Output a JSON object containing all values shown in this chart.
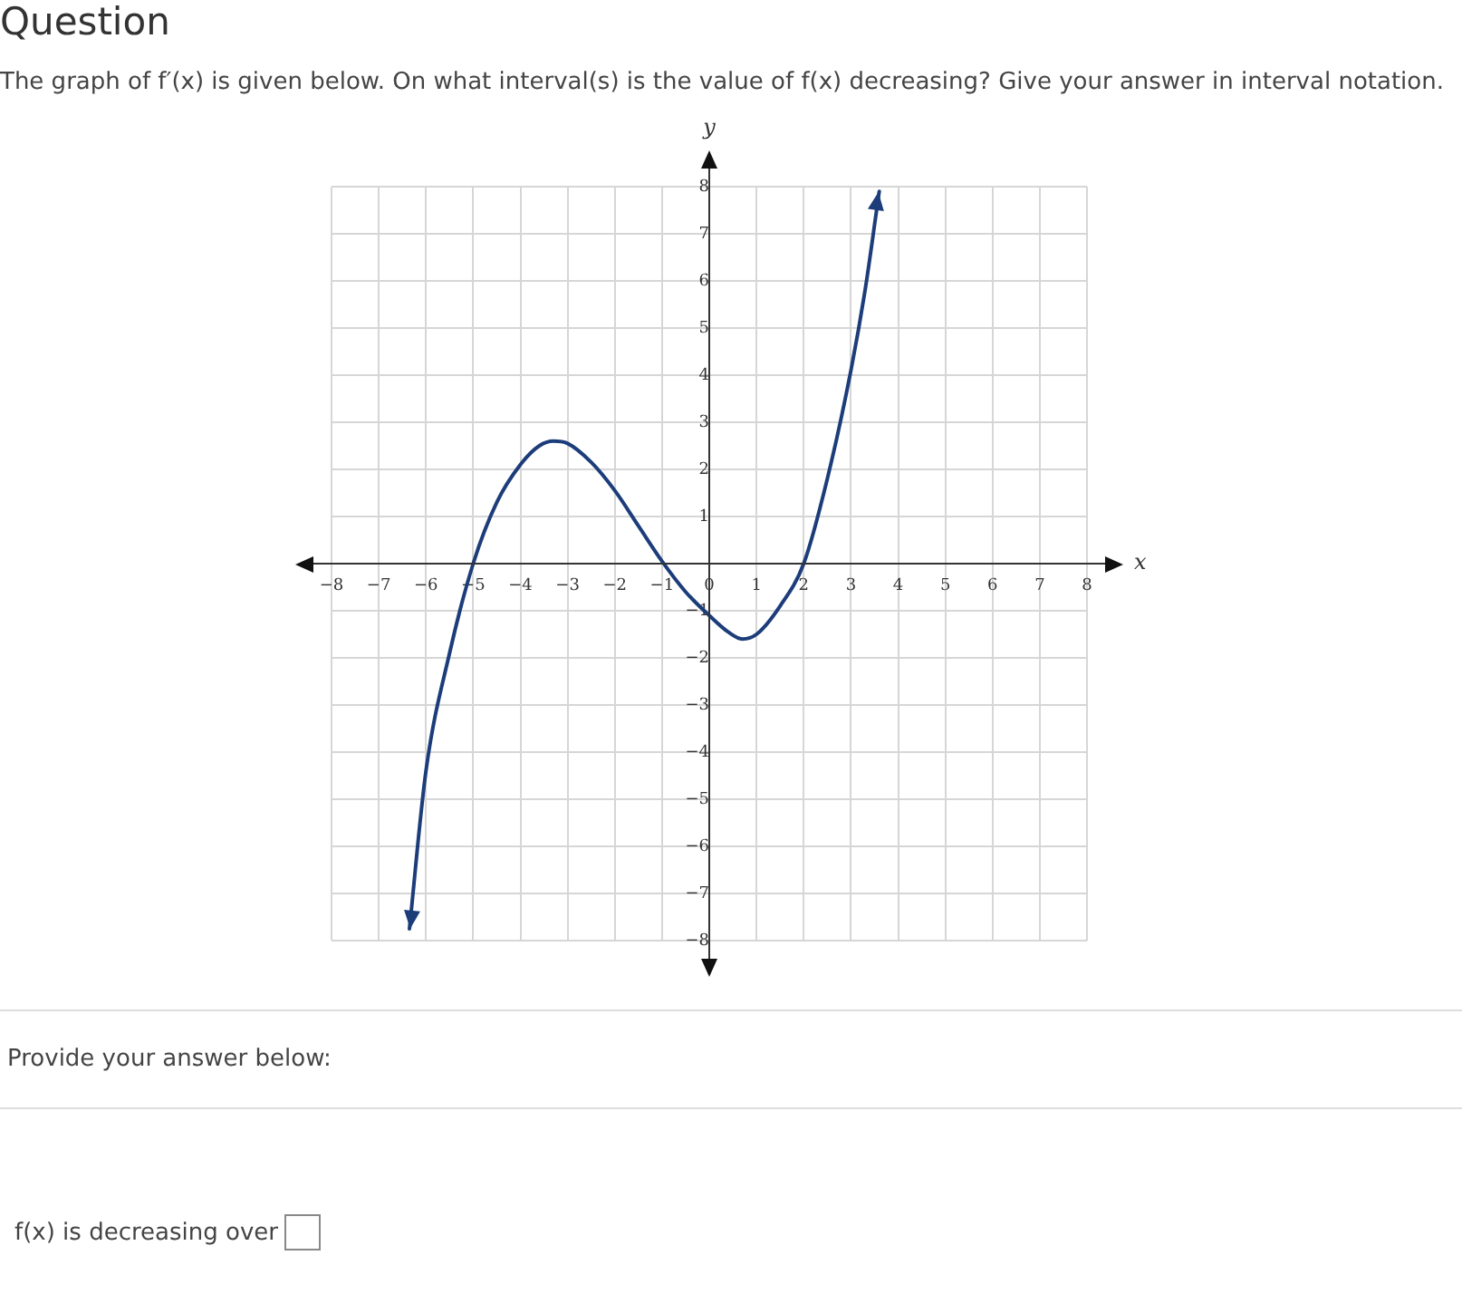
{
  "chart_data": {
    "type": "line",
    "title": "Question",
    "subtitle": "The graph of f′(x) is given below. On what interval(s) is the value of f(x) decreasing? Give your answer in interval notation.",
    "xlabel": "x",
    "ylabel": "y",
    "series": [
      {
        "color": "#1c3d7a",
        "x": [
          -6.35,
          -6,
          -5.5,
          -5,
          -4.5,
          -4,
          -3.6,
          -3.3,
          -3,
          -2.5,
          -2,
          -1.5,
          -1,
          -0.5,
          0,
          0.4,
          0.7,
          1,
          1.5,
          2,
          2.5,
          3,
          3.3,
          3.6
        ],
        "values": [
          -7.75,
          -4.4,
          -1.9,
          0,
          1.3,
          2.1,
          2.5,
          2.6,
          2.55,
          2.15,
          1.55,
          0.8,
          0.05,
          -0.6,
          -1.1,
          -1.45,
          -1.6,
          -1.5,
          -0.9,
          0,
          1.8,
          4.1,
          5.8,
          7.9
        ]
      }
    ],
    "xlim": [
      -8,
      8
    ],
    "ylim": [
      -8,
      8
    ],
    "xticks": [
      -8,
      -7,
      -6,
      -5,
      -4,
      -3,
      -2,
      -1,
      0,
      1,
      2,
      3,
      4,
      5,
      6,
      7,
      8
    ],
    "yticks": [
      -8,
      -7,
      -6,
      -5,
      -4,
      -3,
      -2,
      -1,
      1,
      2,
      3,
      4,
      5,
      6,
      7,
      8
    ],
    "grid": true,
    "marker": "none",
    "line_style": "solid",
    "annotations": [
      "Provide your answer below:",
      "f(x) is decreasing over"
    ]
  }
}
